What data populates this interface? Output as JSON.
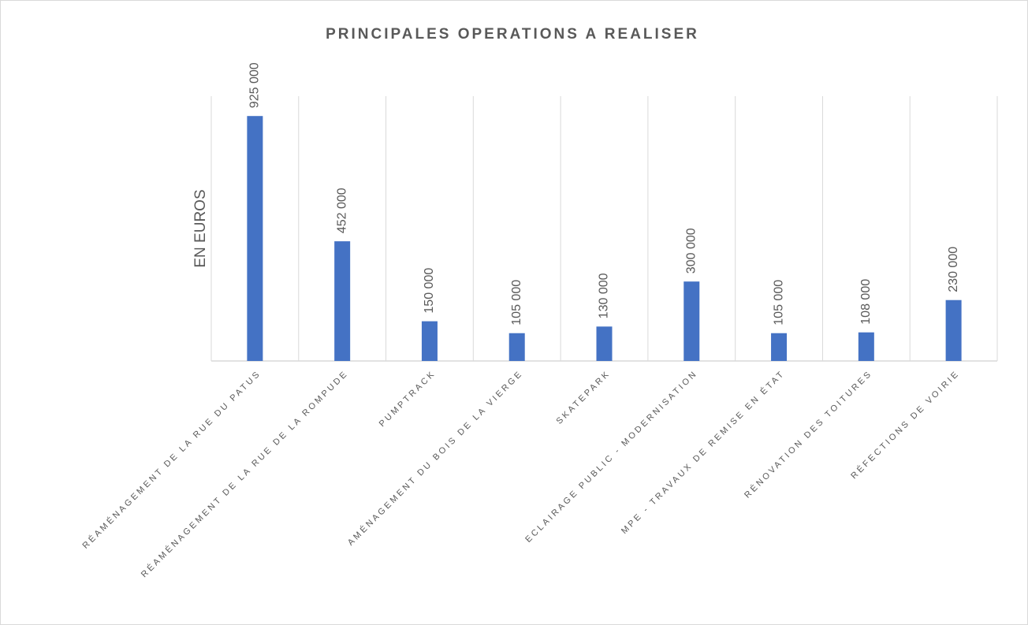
{
  "chart_data": {
    "type": "bar",
    "title": "PRINCIPALES OPERATIONS A REALISER",
    "y_label": "EN EUROS",
    "categories": [
      "RÉAMÉNAGEMENT DE LA RUE DU PATUS",
      "RÉAMÉNAGEMENT DE LA RUE DE LA ROMPUDE",
      "PUMPTRACK",
      "AMÉNAGEMENT DU BOIS DE LA VIERGE",
      "SKATEPARK",
      "ECLAIRAGE PUBLIC - MODERNISATION",
      "MPE - TRAVAUX DE REMISE EN ÉTAT",
      "RÉNOVATION DES TOITURES",
      "RÉFECTIONS DE VOIRIE"
    ],
    "values": [
      925000,
      452000,
      150000,
      105000,
      130000,
      300000,
      105000,
      108000,
      230000
    ],
    "value_labels": [
      "925 000",
      "452 000",
      "150 000",
      "105 000",
      "130 000",
      "300 000",
      "105 000",
      "108 000",
      "230 000"
    ],
    "color": "#4472c4",
    "ylim": [
      0,
      1000000
    ]
  }
}
